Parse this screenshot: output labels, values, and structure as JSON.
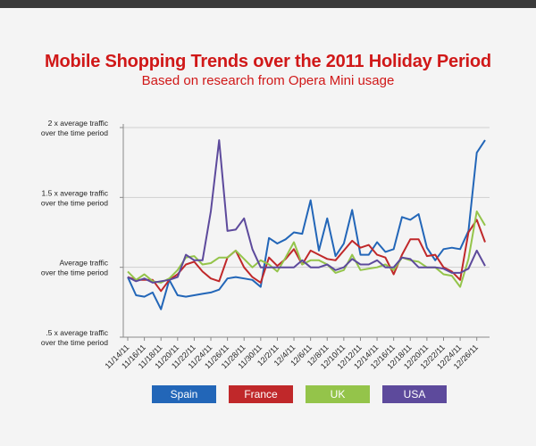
{
  "header": {
    "title": "Mobile Shopping Trends over the 2011 Holiday Period",
    "subtitle": "Based on research from Opera Mini usage"
  },
  "colors": {
    "title": "#d01818",
    "grid": "#cfcfcf",
    "axis": "#8a8a8a",
    "background": "#f4f4f4"
  },
  "chart_data": {
    "type": "line",
    "title": "Mobile Shopping Trends over the 2011 Holiday Period",
    "subtitle": "Based on research from Opera Mini usage",
    "ylim": [
      0.5,
      2.0
    ],
    "grid": true,
    "legend_position": "bottom",
    "y_ticks": [
      {
        "value": 2.0,
        "lines": [
          "2 x average traffic",
          "over the time period"
        ]
      },
      {
        "value": 1.5,
        "lines": [
          "1.5 x average traffic",
          "over the time period"
        ]
      },
      {
        "value": 1.0,
        "lines": [
          "Average traffic",
          "over the time period"
        ]
      },
      {
        "value": 0.5,
        "lines": [
          ".5 x average traffic",
          "over the time period"
        ]
      }
    ],
    "x_tick_labels": [
      "11/14/11",
      "11/16/11",
      "11/18/11",
      "11/20/11",
      "11/22/11",
      "11/24/11",
      "11/26/11",
      "11/28/11",
      "11/30/11",
      "12/2/11",
      "12/4/11",
      "12/6/11",
      "12/8/11",
      "12/10/11",
      "12/12/11",
      "12/14/11",
      "12/16/11",
      "12/18/11",
      "12/20/11",
      "12/22/11",
      "12/24/11",
      "12/26/11"
    ],
    "x": [
      "11/14/11",
      "11/15/11",
      "11/16/11",
      "11/17/11",
      "11/18/11",
      "11/19/11",
      "11/20/11",
      "11/21/11",
      "11/22/11",
      "11/23/11",
      "11/24/11",
      "11/25/11",
      "11/26/11",
      "11/27/11",
      "11/28/11",
      "11/29/11",
      "11/30/11",
      "12/1/11",
      "12/2/11",
      "12/3/11",
      "12/4/11",
      "12/5/11",
      "12/6/11",
      "12/7/11",
      "12/8/11",
      "12/9/11",
      "12/10/11",
      "12/11/11",
      "12/12/11",
      "12/13/11",
      "12/14/11",
      "12/15/11",
      "12/16/11",
      "12/17/11",
      "12/18/11",
      "12/19/11",
      "12/20/11",
      "12/21/11",
      "12/22/11",
      "12/23/11",
      "12/24/11",
      "12/25/11",
      "12/26/11",
      "12/27/11"
    ],
    "series": [
      {
        "name": "Spain",
        "color": "#2266b8",
        "values": [
          0.93,
          0.8,
          0.79,
          0.82,
          0.7,
          0.91,
          0.8,
          0.79,
          0.8,
          0.81,
          0.82,
          0.84,
          0.92,
          0.93,
          0.92,
          0.91,
          0.86,
          1.21,
          1.17,
          1.2,
          1.25,
          1.24,
          1.48,
          1.12,
          1.35,
          1.08,
          1.17,
          1.41,
          1.09,
          1.09,
          1.18,
          1.11,
          1.13,
          1.36,
          1.34,
          1.38,
          1.14,
          1.05,
          1.13,
          1.14,
          1.13,
          1.26,
          1.82,
          1.91
        ]
      },
      {
        "name": "France",
        "color": "#c0282a",
        "values": [
          0.93,
          0.91,
          0.91,
          0.91,
          0.83,
          0.91,
          0.95,
          1.02,
          1.04,
          0.97,
          0.92,
          0.9,
          1.07,
          1.12,
          1.0,
          0.93,
          0.89,
          1.07,
          1.01,
          1.06,
          1.13,
          1.02,
          1.12,
          1.09,
          1.06,
          1.05,
          1.12,
          1.19,
          1.14,
          1.16,
          1.09,
          1.07,
          0.95,
          1.09,
          1.2,
          1.2,
          1.08,
          1.09,
          1.0,
          0.97,
          0.91,
          1.25,
          1.34,
          1.18
        ]
      },
      {
        "name": "UK",
        "color": "#94c44a",
        "values": [
          0.97,
          0.91,
          0.95,
          0.9,
          0.89,
          0.92,
          0.98,
          1.07,
          1.08,
          1.02,
          1.03,
          1.07,
          1.07,
          1.12,
          1.06,
          1.0,
          1.05,
          1.02,
          0.97,
          1.07,
          1.18,
          1.02,
          1.05,
          1.05,
          1.02,
          0.96,
          0.98,
          1.09,
          0.98,
          0.99,
          1.0,
          1.02,
          0.98,
          1.07,
          1.05,
          1.04,
          1.0,
          1.0,
          0.95,
          0.94,
          0.86,
          1.06,
          1.4,
          1.3
        ]
      },
      {
        "name": "USA",
        "color": "#5d4a9c",
        "values": [
          0.93,
          0.9,
          0.92,
          0.89,
          0.9,
          0.91,
          0.93,
          1.09,
          1.05,
          1.05,
          1.4,
          1.91,
          1.26,
          1.27,
          1.35,
          1.13,
          1.0,
          1.0,
          1.0,
          1.0,
          1.0,
          1.05,
          1.0,
          1.0,
          1.02,
          0.98,
          1.0,
          1.06,
          1.02,
          1.02,
          1.05,
          1.0,
          1.0,
          1.07,
          1.06,
          1.0,
          1.0,
          1.0,
          0.99,
          0.96,
          0.96,
          0.99,
          1.12,
          1.01
        ]
      }
    ]
  }
}
